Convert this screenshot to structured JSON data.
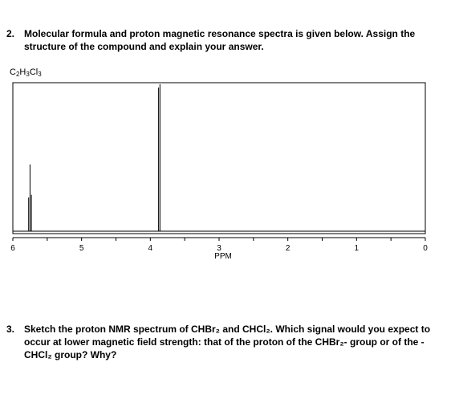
{
  "question2": {
    "number": "2.",
    "text": "Molecular formula and proton magnetic resonance spectra is given below. Assign the structure of the compound and explain your answer."
  },
  "formula": {
    "c": "C",
    "c_sub": "2",
    "h": "H",
    "h_sub": "3",
    "cl": "Cl",
    "cl_sub": "3"
  },
  "question3": {
    "number": "3.",
    "text": "Sketch the proton NMR spectrum of CHBr₂ and CHCl₂. Which signal would you expect to occur at lower magnetic field strength: that of the proton of the CHBr₂- group or of the - CHCl₂ group? Why?"
  },
  "chart_data": {
    "type": "line",
    "xlabel": "PPM",
    "ylabel": "",
    "xlim": [
      6,
      0
    ],
    "x_reversed": true,
    "tick_labels": [
      "6",
      "5",
      "4",
      "3",
      "2",
      "1",
      "0"
    ],
    "ticks": [
      6,
      5.5,
      5,
      4.5,
      4,
      3.5,
      3,
      2.5,
      2,
      1.5,
      1,
      0.5,
      0
    ],
    "grid": false,
    "peaks": [
      {
        "ppm": 5.77,
        "intensity": 0.5
      },
      {
        "ppm": 5.75,
        "intensity": 0.99
      },
      {
        "ppm": 5.73,
        "intensity": 0.54
      },
      {
        "ppm": 3.88,
        "intensity": 2.13
      },
      {
        "ppm": 3.86,
        "intensity": 2.18
      }
    ]
  }
}
